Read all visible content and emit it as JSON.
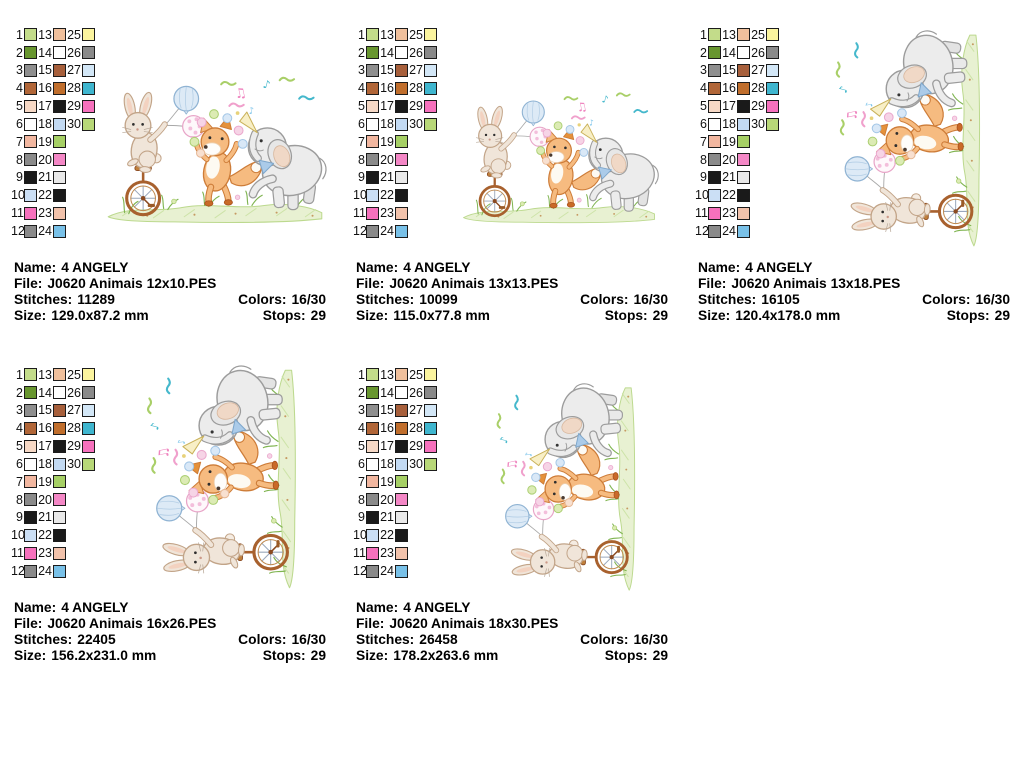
{
  "labels": {
    "name": "Name:",
    "file": "File:",
    "stitches": "Stitches:",
    "size": "Size:",
    "colors": "Colors:",
    "stops": "Stops:"
  },
  "palette": {
    "numbers": [
      1,
      2,
      3,
      4,
      5,
      6,
      7,
      8,
      9,
      10,
      11,
      12,
      13,
      14,
      15,
      16,
      17,
      18,
      19,
      20,
      21,
      22,
      23,
      24,
      25,
      26,
      27,
      28,
      29,
      30
    ],
    "colors": [
      "#c3dc8a",
      "#68962f",
      "#8e8e8e",
      "#b16638",
      "#f7d9c6",
      "#ffffff",
      "#f2b7a0",
      "#8a8a8a",
      "#1a1a1a",
      "#cbdff5",
      "#f671bd",
      "#8a8a8a",
      "#f0c09c",
      "#ffffff",
      "#a75f3b",
      "#c06e2c",
      "#1a1a1a",
      "#c3daf3",
      "#a6d065",
      "#f487c6",
      "#e9e9e9",
      "#1a1a1a",
      "#f2c2ab",
      "#79c1e8",
      "#fbf49e",
      "#8a8a8a",
      "#d3e7f7",
      "#3fb6cf",
      "#f671bd",
      "#b8d878"
    ]
  },
  "panels": [
    {
      "name": "4 ANGELY",
      "file": "J0620 Animais 12x10.PES",
      "stitches": "11289",
      "size": "129.0x87.2 mm",
      "colors": "16/30",
      "stops": "29",
      "orientation": "landscape"
    },
    {
      "name": "4 ANGELY",
      "file": "J0620 Animais 13x13.PES",
      "stitches": "10099",
      "size": "115.0x77.8 mm",
      "colors": "16/30",
      "stops": "29",
      "orientation": "landscape"
    },
    {
      "name": "4 ANGELY",
      "file": "J0620 Animais 13x18.PES",
      "stitches": "16105",
      "size": "120.4x178.0 mm",
      "colors": "16/30",
      "stops": "29",
      "orientation": "portrait"
    },
    {
      "name": "4 ANGELY",
      "file": "J0620 Animais 16x26.PES",
      "stitches": "22405",
      "size": "156.2x231.0 mm",
      "colors": "16/30",
      "stops": "29",
      "orientation": "portrait"
    },
    {
      "name": "4 ANGELY",
      "file": "J0620 Animais 18x30.PES",
      "stitches": "26458",
      "size": "178.2x263.6 mm",
      "colors": "16/30",
      "stops": "29",
      "orientation": "portrait"
    }
  ]
}
